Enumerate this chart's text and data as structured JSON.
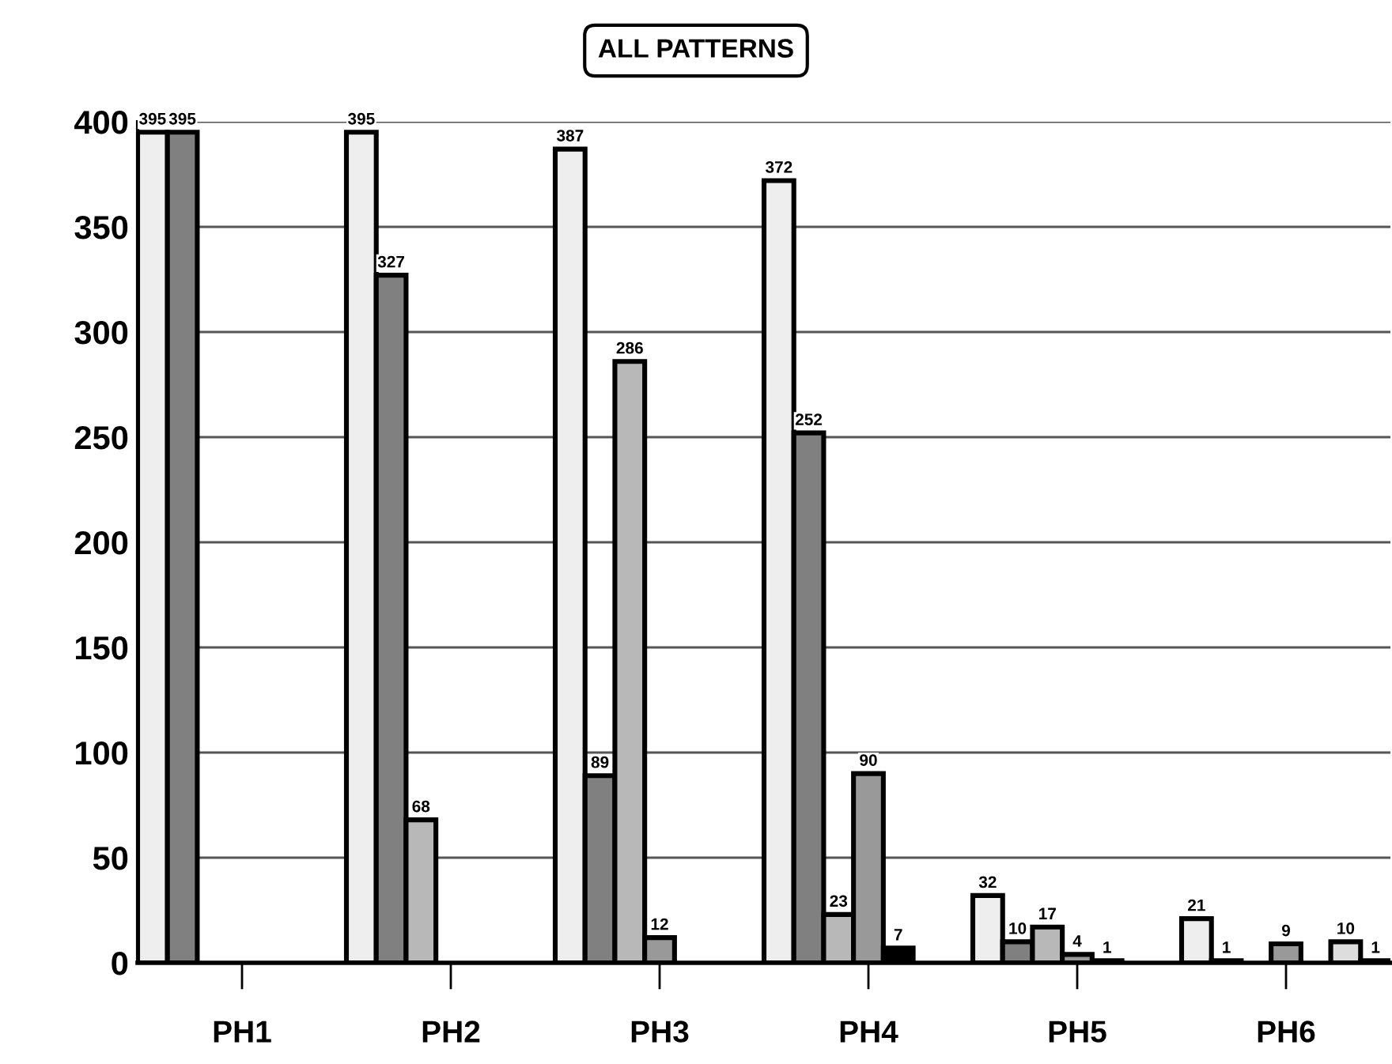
{
  "chart_data": {
    "type": "bar",
    "title": "ALL PATTERNS",
    "categories": [
      "PH1",
      "PH2",
      "PH3",
      "PH4",
      "PH5",
      "PH6"
    ],
    "series": [
      {
        "color": "#eeeeee",
        "values": [
          395,
          395,
          387,
          372,
          32,
          21
        ],
        "value_labels": [
          "395",
          "395",
          "387",
          "372",
          "32",
          "21"
        ]
      },
      {
        "color": "#808080",
        "values": [
          395,
          327,
          89,
          252,
          10,
          1
        ],
        "value_labels": [
          "395",
          "327",
          "89",
          "252",
          "10",
          "1"
        ]
      },
      {
        "color": "#b8b8b8",
        "values": [
          null,
          68,
          286,
          23,
          17,
          null
        ],
        "value_labels": [
          null,
          "68",
          "286",
          "23",
          "17",
          null
        ]
      },
      {
        "color": "#999999",
        "values": [
          null,
          null,
          12,
          90,
          4,
          9
        ],
        "value_labels": [
          null,
          null,
          "12",
          "90",
          "4",
          "9"
        ]
      },
      {
        "color": "#000000",
        "values": [
          null,
          null,
          null,
          7,
          1,
          null
        ],
        "value_labels": [
          null,
          null,
          null,
          "7",
          "1",
          null
        ]
      },
      {
        "color": "#dddddd",
        "values": [
          null,
          null,
          null,
          null,
          null,
          10
        ],
        "value_labels": [
          null,
          null,
          null,
          null,
          null,
          "10"
        ]
      },
      {
        "color": "#cccccc",
        "values": [
          null,
          null,
          null,
          null,
          null,
          1
        ],
        "value_labels": [
          null,
          null,
          null,
          null,
          null,
          "1"
        ]
      }
    ],
    "ylim": [
      0,
      400
    ],
    "yticks": [
      0,
      50,
      100,
      150,
      200,
      250,
      300,
      350,
      400
    ],
    "grid": "y",
    "legend": false
  }
}
